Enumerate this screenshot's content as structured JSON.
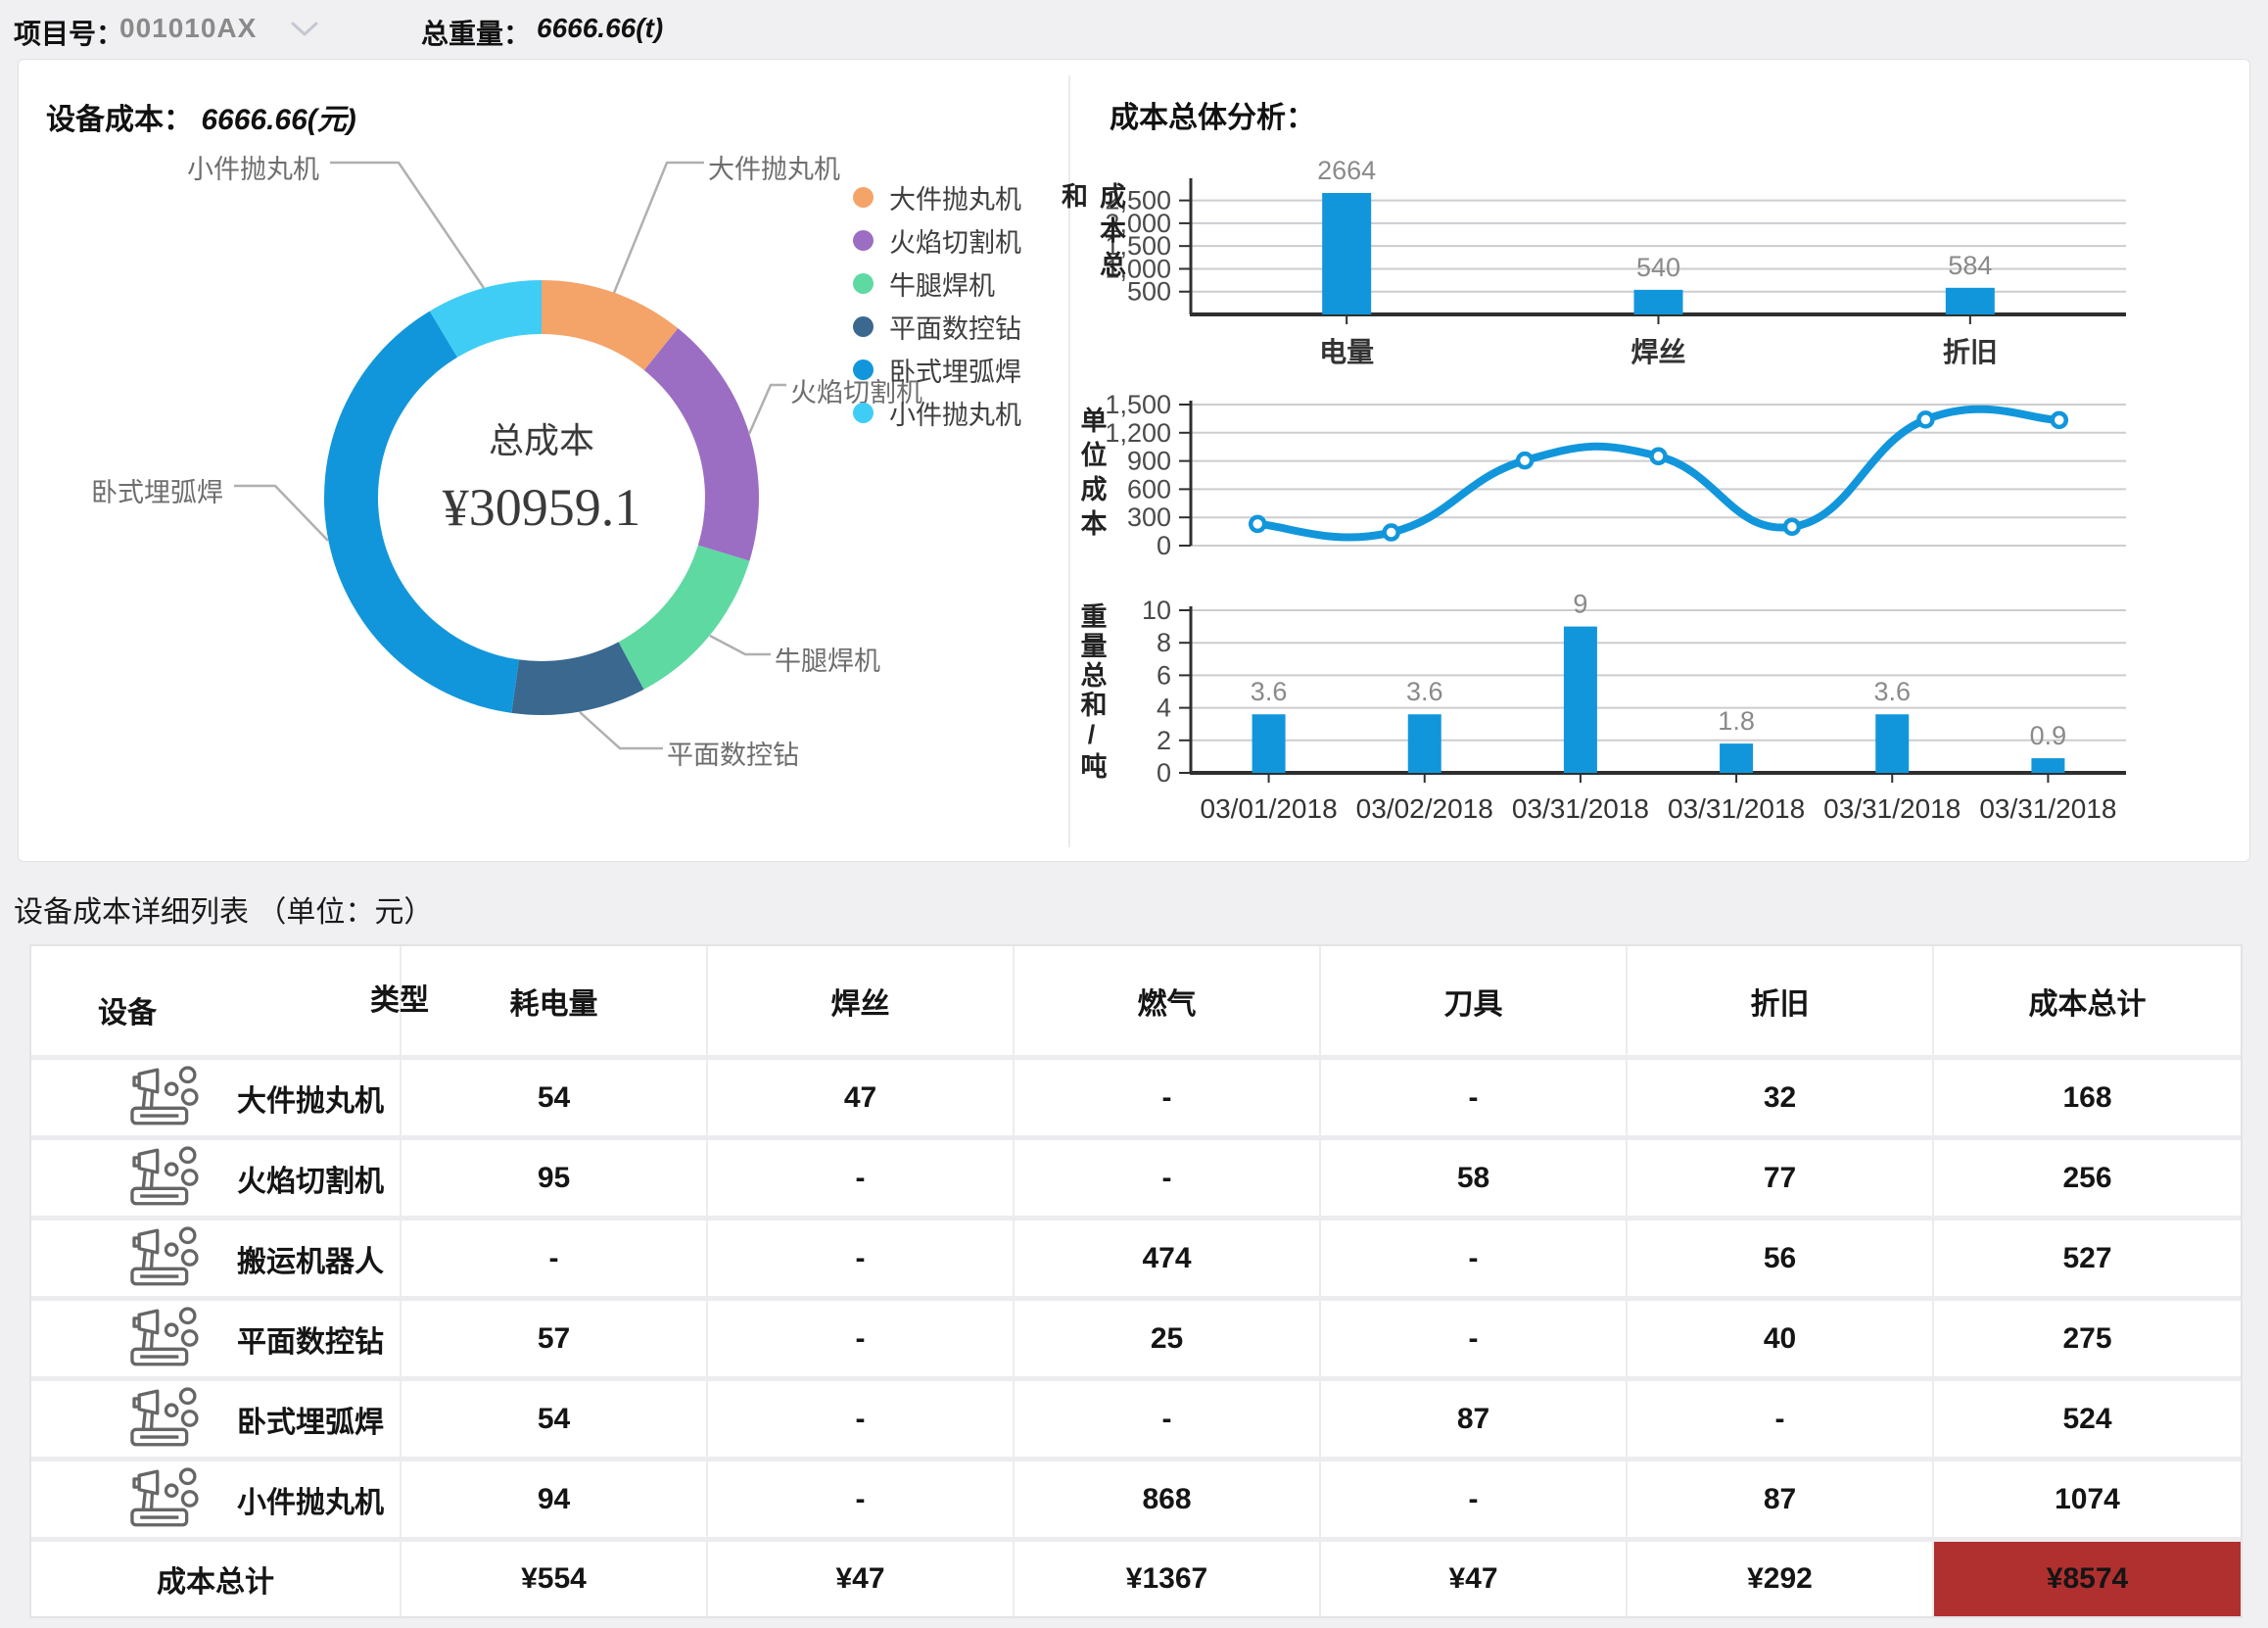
{
  "header": {
    "project_label": "项目号：",
    "project_value": "001010AX",
    "weight_label": "总重量：",
    "weight_value": "6666.66(t)"
  },
  "device_cost_panel": {
    "title_label": "设备成本：",
    "title_value": "6666.66(元)"
  },
  "analysis_panel": {
    "title": "成本总体分析："
  },
  "colors": {
    "bar_blue": "#1296db",
    "red_text": "#fe0000",
    "total_highlight_bg": "#b02f2f",
    "connector_gray": "#b0b0b0"
  },
  "chart_data": [
    {
      "type": "pie",
      "title": "总成本",
      "center_value": "¥30959.1",
      "note": "donut of device cost share, percents estimated from arc angles",
      "segments": [
        {
          "label": "大件抛丸机",
          "percent": 10.8,
          "color": "#f4a369"
        },
        {
          "label": "火焰切割机",
          "percent": 18.9,
          "color": "#9b6ec3"
        },
        {
          "label": "牛腿焊机",
          "percent": 12.5,
          "color": "#5ed9a2"
        },
        {
          "label": "平面数控钻",
          "percent": 10.0,
          "color": "#3a688f"
        },
        {
          "label": "卧式埋弧焊",
          "percent": 39.2,
          "color": "#1296db"
        },
        {
          "label": "小件抛丸机",
          "percent": 8.6,
          "color": "#3fcdf6"
        }
      ]
    },
    {
      "type": "bar",
      "ylabel": "成本总和",
      "categories": [
        "电量",
        "焊丝",
        "折旧"
      ],
      "values": [
        2664,
        540,
        584
      ],
      "yticks": [
        500,
        1000,
        1500,
        2000,
        2500
      ],
      "ylim": [
        0,
        2900
      ],
      "grid": true,
      "bar_color": "#1296db"
    },
    {
      "type": "line",
      "ylabel": "单位成本",
      "x": [
        1,
        2,
        3,
        4,
        5,
        6,
        7
      ],
      "values": [
        230,
        140,
        905,
        950,
        200,
        1340,
        1335
      ],
      "yticks": [
        0,
        300,
        600,
        900,
        1200,
        1500
      ],
      "ylim": [
        0,
        1500
      ],
      "grid": true,
      "line_color": "#1296db"
    },
    {
      "type": "bar",
      "ylabel": "重量总和/吨",
      "categories": [
        "03/01/2018",
        "03/02/2018",
        "03/31/2018",
        "03/31/2018",
        "03/31/2018",
        "03/31/2018"
      ],
      "values": [
        3.6,
        3.6,
        9,
        1.8,
        3.6,
        0.9
      ],
      "yticks": [
        0,
        2,
        4,
        6,
        8,
        10
      ],
      "ylim": [
        0,
        10
      ],
      "grid": true,
      "bar_color": "#1296db"
    }
  ],
  "table": {
    "title": "设备成本详细列表 （单位：元）",
    "corner": {
      "top": "类型",
      "bottom": "设备"
    },
    "columns": [
      "耗电量",
      "焊丝",
      "燃气",
      "刀具",
      "折旧",
      "成本总计"
    ],
    "rows": [
      {
        "device": "大件抛丸机",
        "cells": [
          {
            "v": "54"
          },
          {
            "v": "47"
          },
          {
            "v": "-"
          },
          {
            "v": "-"
          },
          {
            "v": "32"
          },
          {
            "v": "168"
          }
        ]
      },
      {
        "device": "火焰切割机",
        "cells": [
          {
            "v": "95",
            "red": true
          },
          {
            "v": "-"
          },
          {
            "v": "-"
          },
          {
            "v": "58"
          },
          {
            "v": "77"
          },
          {
            "v": "256"
          }
        ]
      },
      {
        "device": "搬运机器人",
        "cells": [
          {
            "v": "-"
          },
          {
            "v": "-"
          },
          {
            "v": "474"
          },
          {
            "v": "-"
          },
          {
            "v": "56"
          },
          {
            "v": "527"
          }
        ]
      },
      {
        "device": "平面数控钻",
        "cells": [
          {
            "v": "57"
          },
          {
            "v": "-"
          },
          {
            "v": "25"
          },
          {
            "v": "-"
          },
          {
            "v": "40"
          },
          {
            "v": "275"
          }
        ]
      },
      {
        "device": "卧式埋弧焊",
        "cells": [
          {
            "v": "54"
          },
          {
            "v": "-"
          },
          {
            "v": "-"
          },
          {
            "v": "87",
            "red": true
          },
          {
            "v": "-"
          },
          {
            "v": "524"
          }
        ]
      },
      {
        "device": "小件抛丸机",
        "cells": [
          {
            "v": "94"
          },
          {
            "v": "-"
          },
          {
            "v": "868",
            "red": true
          },
          {
            "v": "-"
          },
          {
            "v": "87",
            "red": true
          },
          {
            "v": "1074",
            "red": true
          }
        ]
      }
    ],
    "footer": {
      "label": "成本总计",
      "cells": [
        "¥554",
        "¥47",
        "¥1367",
        "¥47",
        "¥292",
        "¥8574"
      ],
      "highlight_last": true
    }
  }
}
